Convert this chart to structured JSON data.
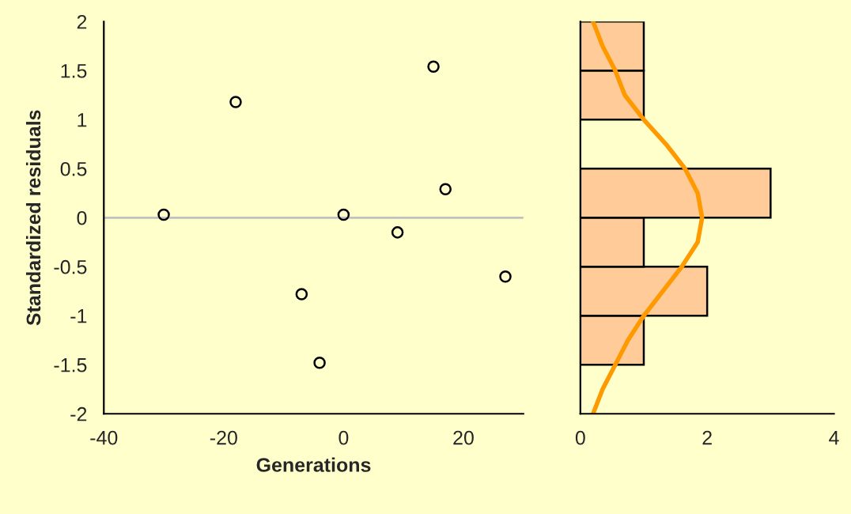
{
  "chart_data": [
    {
      "type": "scatter",
      "xlabel": "Generations",
      "ylabel": "Standardized residuals",
      "x": [
        -30,
        -18,
        -7,
        -4,
        0,
        9,
        15,
        17,
        27
      ],
      "series": [
        {
          "color": "#000000",
          "values": [
            0.03,
            1.18,
            -0.78,
            -1.48,
            0.03,
            -0.15,
            1.54,
            0.29,
            -0.6
          ]
        }
      ],
      "marker": "circle",
      "xlim": [
        -40,
        30
      ],
      "xticks": [
        -40,
        -20,
        0,
        20
      ],
      "ylim": [
        -2,
        2
      ],
      "yticks": [
        -2,
        -1.5,
        -1,
        -0.5,
        0,
        0.5,
        1,
        1.5,
        2
      ],
      "ref_lines": [
        {
          "axis": "y",
          "value": 0,
          "color": "#c0c0c0"
        }
      ],
      "grid": false
    },
    {
      "type": "histogram",
      "orientation": "horizontal",
      "bins": [
        -2,
        -1.5,
        -1,
        -0.5,
        0,
        0.5,
        1,
        1.5,
        2
      ],
      "values": [
        0,
        1,
        2,
        1,
        3,
        0,
        1,
        1
      ],
      "color": "#ffcc99",
      "series": [
        {
          "type": "line",
          "color": "#ff9900",
          "x": [
            -2,
            -1.75,
            -1.5,
            -1.25,
            -1,
            -0.75,
            -0.5,
            -0.25,
            0,
            0.25,
            0.5,
            0.75,
            1,
            1.25,
            1.5,
            1.75,
            2
          ],
          "values": [
            0.2,
            0.35,
            0.55,
            0.75,
            1.0,
            1.3,
            1.6,
            1.85,
            1.92,
            1.85,
            1.65,
            1.35,
            1.0,
            0.7,
            0.55,
            0.35,
            0.2
          ]
        }
      ],
      "xlim": [
        0,
        4
      ],
      "xticks": [
        0,
        2,
        4
      ],
      "ylim": [
        -2,
        2
      ],
      "yticks": [
        -2,
        -1.5,
        -1,
        -0.5,
        0,
        0.5,
        1,
        1.5,
        2
      ],
      "tick_labels": "x",
      "grid": false
    }
  ]
}
